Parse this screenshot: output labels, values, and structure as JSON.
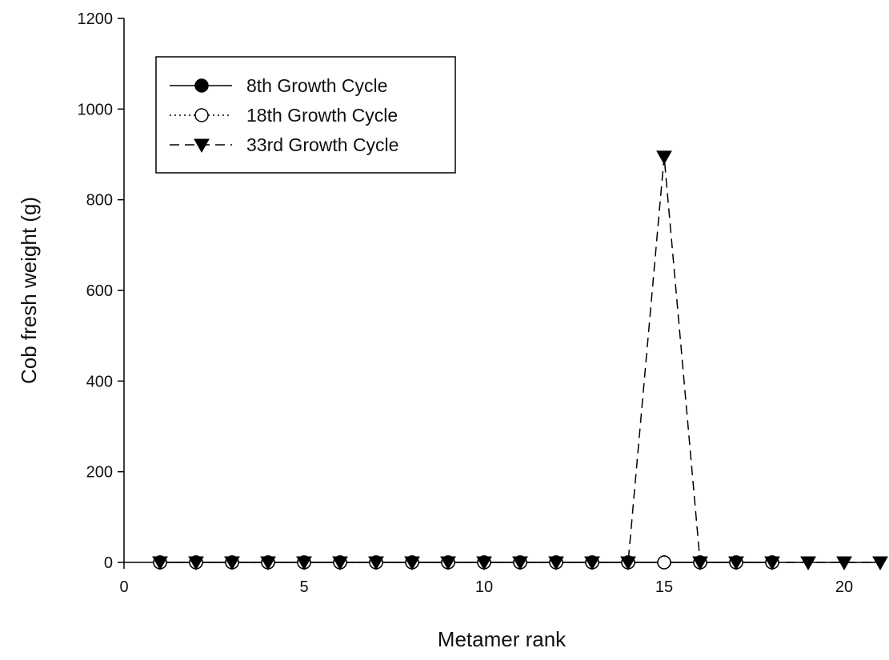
{
  "chart_data": {
    "type": "line",
    "title": "",
    "xlabel": "Metamer rank",
    "ylabel": "Cob fresh weight (g)",
    "xlim": [
      0,
      21
    ],
    "ylim": [
      0,
      1200
    ],
    "xticks": [
      0,
      5,
      10,
      15,
      20
    ],
    "yticks": [
      0,
      200,
      400,
      600,
      800,
      1000,
      1200
    ],
    "grid": false,
    "legend_position": "top-left",
    "series": [
      {
        "name": "8th Growth Cycle",
        "marker": "filled-circle",
        "line": "solid",
        "x": [
          1,
          2,
          3,
          4,
          5,
          6,
          7,
          8,
          9,
          10,
          11,
          12,
          13,
          14,
          15,
          16,
          17,
          18
        ],
        "y": [
          0,
          0,
          0,
          0,
          0,
          0,
          0,
          0,
          0,
          0,
          0,
          0,
          0,
          0,
          0,
          0,
          0,
          0
        ]
      },
      {
        "name": "18th Growth Cycle",
        "marker": "open-circle",
        "line": "dotted",
        "x": [
          1,
          2,
          3,
          4,
          5,
          6,
          7,
          8,
          9,
          10,
          11,
          12,
          13,
          14,
          15,
          16,
          17,
          18
        ],
        "y": [
          0,
          0,
          0,
          0,
          0,
          0,
          0,
          0,
          0,
          0,
          0,
          0,
          0,
          0,
          0,
          0,
          0,
          0
        ]
      },
      {
        "name": "33rd Growth Cycle",
        "marker": "filled-triangle-down",
        "line": "dashed",
        "x": [
          1,
          2,
          3,
          4,
          5,
          6,
          7,
          8,
          9,
          10,
          11,
          12,
          13,
          14,
          15,
          16,
          17,
          18,
          19,
          20,
          21
        ],
        "y": [
          0,
          0,
          0,
          0,
          0,
          0,
          0,
          0,
          0,
          0,
          0,
          0,
          0,
          0,
          895,
          0,
          0,
          0,
          0,
          0,
          0
        ]
      }
    ]
  }
}
